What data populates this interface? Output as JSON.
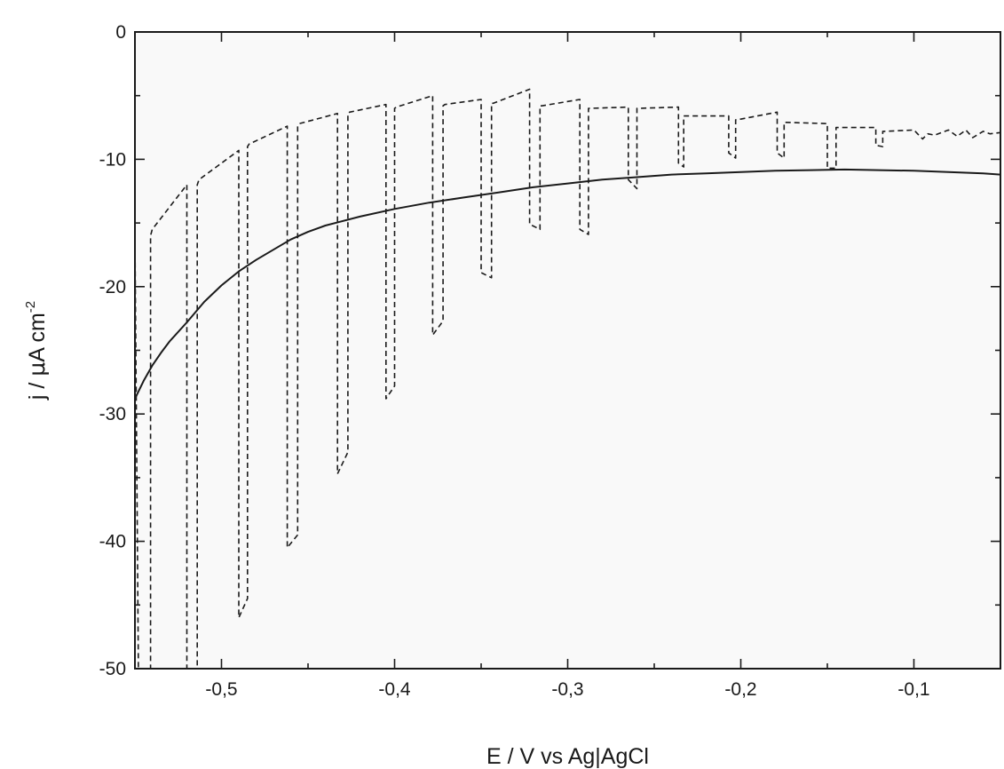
{
  "chart_data": {
    "type": "line",
    "xlabel": "E / V vs Ag|AgCl",
    "ylabel_parts": [
      "j / ",
      "μ",
      "A cm",
      "-2"
    ],
    "xlim": [
      -0.55,
      -0.05
    ],
    "ylim": [
      -50,
      0
    ],
    "x_ticks": [
      -0.5,
      -0.4,
      -0.3,
      -0.2,
      -0.1
    ],
    "x_tick_labels": [
      "-0,5",
      "-0,4",
      "-0,3",
      "-0,2",
      "-0,1"
    ],
    "y_ticks": [
      0,
      -10,
      -20,
      -30,
      -40,
      -50
    ],
    "y_tick_labels": [
      "0",
      "-10",
      "-20",
      "-30",
      "-40",
      "-50"
    ],
    "grid": false,
    "series": [
      {
        "style": "solid",
        "color": "#1a1a1a",
        "x": [
          -0.55,
          -0.545,
          -0.54,
          -0.535,
          -0.53,
          -0.52,
          -0.51,
          -0.5,
          -0.49,
          -0.48,
          -0.47,
          -0.46,
          -0.45,
          -0.44,
          -0.42,
          -0.4,
          -0.38,
          -0.36,
          -0.34,
          -0.32,
          -0.3,
          -0.28,
          -0.26,
          -0.24,
          -0.22,
          -0.2,
          -0.18,
          -0.16,
          -0.14,
          -0.12,
          -0.1,
          -0.08,
          -0.06,
          -0.05
        ],
        "y": [
          -28.8,
          -27.4,
          -26.2,
          -25.2,
          -24.3,
          -22.8,
          -21.2,
          -19.9,
          -18.8,
          -17.9,
          -17.1,
          -16.3,
          -15.7,
          -15.2,
          -14.5,
          -13.9,
          -13.4,
          -13.0,
          -12.6,
          -12.2,
          -11.9,
          -11.6,
          -11.4,
          -11.2,
          -11.1,
          -11.0,
          -10.9,
          -10.85,
          -10.8,
          -10.85,
          -10.9,
          -11.0,
          -11.1,
          -11.2
        ]
      },
      {
        "style": "dashed",
        "color": "#1a1a1a",
        "x": [
          -0.55,
          -0.548,
          -0.545,
          -0.541,
          -0.541,
          -0.54,
          -0.52,
          -0.52,
          -0.519,
          -0.514,
          -0.514,
          -0.513,
          -0.49,
          -0.49,
          -0.485,
          -0.485,
          -0.484,
          -0.462,
          -0.462,
          -0.456,
          -0.456,
          -0.455,
          -0.433,
          -0.433,
          -0.427,
          -0.427,
          -0.426,
          -0.405,
          -0.405,
          -0.4,
          -0.4,
          -0.399,
          -0.378,
          -0.378,
          -0.372,
          -0.372,
          -0.371,
          -0.35,
          -0.35,
          -0.344,
          -0.344,
          -0.343,
          -0.322,
          -0.322,
          -0.316,
          -0.316,
          -0.315,
          -0.293,
          -0.293,
          -0.288,
          -0.288,
          -0.287,
          -0.265,
          -0.265,
          -0.26,
          -0.26,
          -0.259,
          -0.236,
          -0.236,
          -0.233,
          -0.233,
          -0.232,
          -0.207,
          -0.207,
          -0.203,
          -0.203,
          -0.202,
          -0.179,
          -0.179,
          -0.175,
          -0.175,
          -0.174,
          -0.15,
          -0.15,
          -0.145,
          -0.145,
          -0.144,
          -0.122,
          -0.122,
          -0.118,
          -0.118,
          -0.117,
          -0.1,
          -0.095,
          -0.092,
          -0.088,
          -0.08,
          -0.075,
          -0.07,
          -0.066,
          -0.06,
          -0.056,
          -0.05
        ],
        "y": [
          -16.0,
          -50.0,
          -50.0,
          -50.0,
          -16.0,
          -15.5,
          -12.0,
          -50.0,
          -50.0,
          -50.0,
          -12.0,
          -11.6,
          -9.3,
          -46.0,
          -44.5,
          -9.0,
          -8.8,
          -7.4,
          -40.5,
          -39.5,
          -7.4,
          -7.2,
          -6.4,
          -34.7,
          -33.0,
          -6.4,
          -6.3,
          -5.7,
          -28.8,
          -27.8,
          -6.0,
          -5.9,
          -5.0,
          -23.8,
          -22.7,
          -5.8,
          -5.7,
          -5.3,
          -18.9,
          -19.3,
          -5.6,
          -5.6,
          -4.5,
          -15.1,
          -15.5,
          -5.8,
          -5.8,
          -5.3,
          -15.5,
          -15.9,
          -6.0,
          -6.0,
          -5.9,
          -11.6,
          -12.3,
          -6.0,
          -6.0,
          -5.9,
          -10.3,
          -10.6,
          -6.6,
          -6.6,
          -6.6,
          -9.5,
          -9.9,
          -6.9,
          -6.9,
          -6.3,
          -9.5,
          -9.9,
          -7.1,
          -7.1,
          -7.2,
          -10.7,
          -10.7,
          -7.5,
          -7.5,
          -7.5,
          -8.9,
          -9.0,
          -7.8,
          -7.8,
          -7.7,
          -8.4,
          -8.0,
          -8.1,
          -7.7,
          -8.2,
          -7.7,
          -8.3,
          -7.8,
          -8.0,
          -7.9
        ]
      }
    ]
  }
}
